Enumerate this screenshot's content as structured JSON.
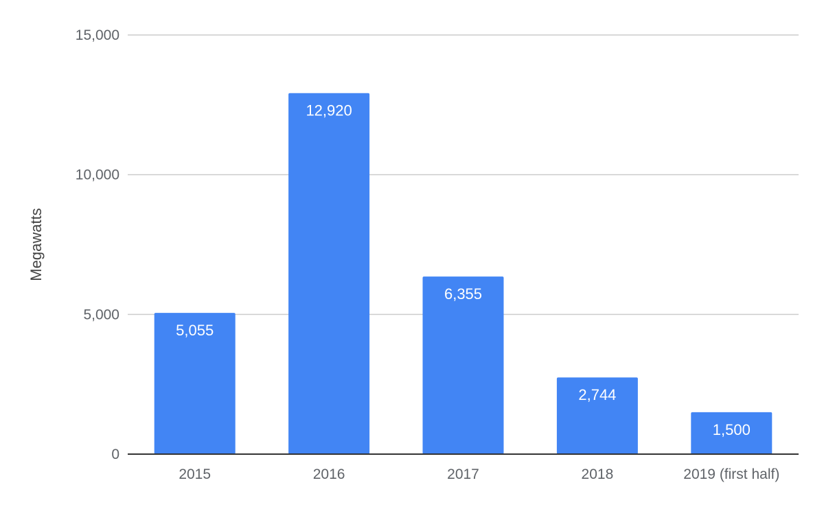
{
  "chart_data": {
    "type": "bar",
    "categories": [
      "2015",
      "2016",
      "2017",
      "2018",
      "2019 (first half)"
    ],
    "values": [
      5055,
      12920,
      6355,
      2744,
      1500
    ],
    "data_labels": [
      "5,055",
      "12,920",
      "6,355",
      "2,744",
      "1,500"
    ],
    "title": "",
    "xlabel": "",
    "ylabel": "Megawatts",
    "ylim": [
      0,
      15000
    ],
    "yticks": [
      0,
      5000,
      10000,
      15000
    ],
    "ytick_labels": [
      "0",
      "5,000",
      "10,000",
      "15,000"
    ],
    "grid": true,
    "legend": "none",
    "bar_color": "#4285f4"
  }
}
